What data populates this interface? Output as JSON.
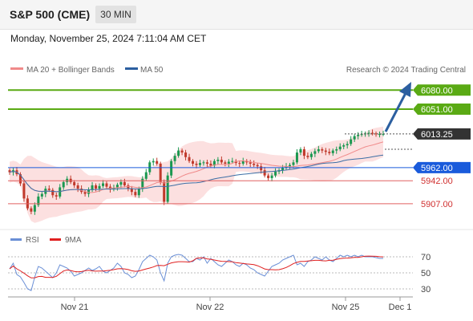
{
  "header": {
    "title": "S&P 500 (CME)",
    "timeframe": "30 MIN"
  },
  "datetime": "Monday, November 25, 2024 7:11:04 AM CET",
  "credit": "Research © 2024 Trading Central",
  "legend": {
    "ma20": "MA 20 + Bollinger Bands",
    "ma50": "MA 50",
    "rsi": "RSI",
    "rsi_ma": "9MA"
  },
  "colors": {
    "green": "#5aaa14",
    "blue": "#1a5bdb",
    "red": "#e06060",
    "dark": "#333333",
    "candle_up": "#1a9850",
    "candle_down": "#c0392b",
    "band": "#fbd5d5",
    "ma50": "#3c6ea5",
    "rsi": "#6a8fd6"
  },
  "chart_data": [
    {
      "type": "candlestick",
      "ylim": [
        5880,
        6095
      ],
      "x_ticks": [
        "Nov 21",
        "Nov 22",
        "Nov 25",
        "Dec 1"
      ],
      "levels": [
        {
          "value": 6080.0,
          "label": "6080.00",
          "kind": "resistance",
          "color": "#5aaa14"
        },
        {
          "value": 6051.0,
          "label": "6051.00",
          "kind": "resistance",
          "color": "#5aaa14"
        },
        {
          "value": 6013.25,
          "label": "6013.25",
          "kind": "last-price",
          "color": "#333333"
        },
        {
          "value": 5962.0,
          "label": "5962.00",
          "kind": "pivot",
          "color": "#1a5bdb"
        },
        {
          "value": 5942.0,
          "label": "5942.00",
          "kind": "support",
          "color": "#e06060"
        },
        {
          "value": 5907.0,
          "label": "5907.00",
          "kind": "support",
          "color": "#e06060"
        }
      ],
      "close": [
        5955,
        5958,
        5952,
        5938,
        5915,
        5900,
        5895,
        5905,
        5918,
        5922,
        5930,
        5928,
        5920,
        5918,
        5932,
        5940,
        5945,
        5940,
        5935,
        5930,
        5925,
        5922,
        5928,
        5935,
        5930,
        5934,
        5938,
        5933,
        5929,
        5931,
        5936,
        5940,
        5935,
        5930,
        5925,
        5920,
        5930,
        5945,
        5955,
        5970,
        5972,
        5968,
        5940,
        5910,
        5950,
        5972,
        5980,
        5988,
        5985,
        5978,
        5972,
        5968,
        5966,
        5969,
        5970,
        5968,
        5965,
        5972,
        5974,
        5970,
        5968,
        5971,
        5972,
        5969,
        5968,
        5972,
        5970,
        5968,
        5966,
        5964,
        5958,
        5950,
        5946,
        5950,
        5956,
        5958,
        5962,
        5964,
        5966,
        5970,
        5985,
        5990,
        5980,
        5978,
        5983,
        5987,
        5990,
        5988,
        5986,
        5984,
        5988,
        5990,
        5994,
        5996,
        5998,
        6005,
        6010,
        6012,
        6013,
        6014,
        6015,
        6014,
        6013,
        6013,
        6013.25
      ]
    },
    {
      "type": "line",
      "name": "RSI",
      "ylim": [
        20,
        80
      ],
      "y_ticks": [
        70,
        50,
        30
      ],
      "values": [
        55,
        62,
        48,
        45,
        38,
        30,
        28,
        45,
        58,
        56,
        52,
        48,
        44,
        50,
        60,
        58,
        56,
        52,
        46,
        48,
        50,
        53,
        56,
        53,
        55,
        58,
        52,
        50,
        53,
        56,
        62,
        58,
        50,
        48,
        44,
        46,
        54,
        64,
        68,
        72,
        70,
        66,
        50,
        40,
        62,
        70,
        72,
        73,
        72,
        68,
        64,
        64,
        68,
        66,
        70,
        62,
        68,
        64,
        60,
        58,
        62,
        66,
        64,
        60,
        58,
        62,
        60,
        56,
        54,
        50,
        48,
        46,
        52,
        58,
        60,
        62,
        66,
        68,
        70,
        72,
        60,
        62,
        58,
        64,
        66,
        70,
        68,
        66,
        70,
        66,
        64,
        68,
        72,
        70,
        72,
        70,
        72,
        70,
        72,
        70,
        70,
        70,
        69,
        68,
        68
      ]
    }
  ]
}
